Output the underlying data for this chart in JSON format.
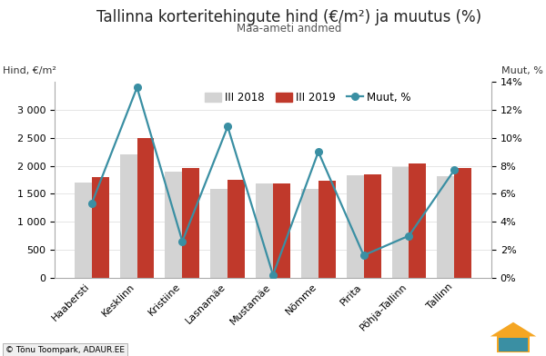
{
  "title": "Tallinna korteritehingute hind (€/m²) ja muutus (%)",
  "subtitle": "Maa-ameti andmed",
  "ylabel_left": "Hind, €/m²",
  "ylabel_right": "Muut, %",
  "categories": [
    "Haabersti",
    "Kesklinn",
    "Kristiine",
    "Lasnamäe",
    "Mustamäe",
    "Nõmme",
    "Pirita",
    "Põhja-Tallinn",
    "Tallinn"
  ],
  "values_2018": [
    1700,
    2200,
    1900,
    1580,
    1690,
    1580,
    1830,
    1980,
    1820
  ],
  "values_2019": [
    1790,
    2500,
    1960,
    1750,
    1690,
    1730,
    1850,
    2040,
    1960
  ],
  "muutus": [
    5.3,
    13.6,
    2.6,
    10.8,
    0.2,
    9.0,
    1.6,
    3.0,
    7.7
  ],
  "bar_color_2018": "#d3d3d3",
  "bar_color_2019": "#c0392b",
  "line_color": "#3a8fa3",
  "marker_color": "#3a8fa3",
  "ylim_left": [
    0,
    3500
  ],
  "ylim_right": [
    0,
    0.14
  ],
  "yticks_left": [
    0,
    500,
    1000,
    1500,
    2000,
    2500,
    3000
  ],
  "yticks_right": [
    0.0,
    0.02,
    0.04,
    0.06,
    0.08,
    0.1,
    0.12,
    0.14
  ],
  "legend_labels": [
    "III 2018",
    "III 2019",
    "Muut, %"
  ],
  "background_color": "#ffffff",
  "plot_bg_color": "#ffffff",
  "title_fontsize": 12,
  "subtitle_fontsize": 8.5,
  "tick_fontsize": 8,
  "legend_fontsize": 8.5,
  "bar_width": 0.38
}
